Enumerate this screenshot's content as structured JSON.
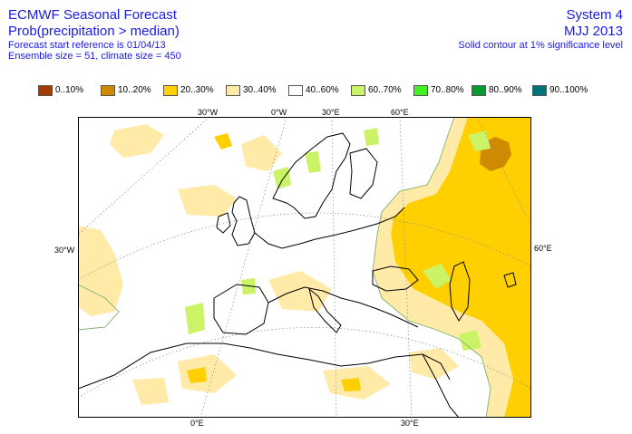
{
  "header": {
    "title": "ECMWF Seasonal Forecast",
    "subtitle": "Prob(precipitation > median)",
    "line1": "Forecast start reference is 01/04/13",
    "line2": "Ensemble size = 51, climate size = 450",
    "system": "System 4",
    "period": "MJJ 2013",
    "note": "Solid contour at 1% significance level"
  },
  "legend": [
    {
      "label": "0..10%",
      "color": "#a53a00"
    },
    {
      "label": "10..20%",
      "color": "#d08a00"
    },
    {
      "label": "20..30%",
      "color": "#ffcf00"
    },
    {
      "label": "30..40%",
      "color": "#ffeaa8"
    },
    {
      "label": "40..60%",
      "color": "#ffffff"
    },
    {
      "label": "60..70%",
      "color": "#ccf266"
    },
    {
      "label": "70..80%",
      "color": "#44ee22"
    },
    {
      "label": "80..90%",
      "color": "#0a9a32"
    },
    {
      "label": "90..100%",
      "color": "#00737a"
    }
  ],
  "axes": {
    "top": [
      "30°W",
      "0°W",
      "30°E",
      "60°E"
    ],
    "bottom": [
      "0°E",
      "30°E"
    ],
    "left": "30°W",
    "right": "60°E"
  }
}
